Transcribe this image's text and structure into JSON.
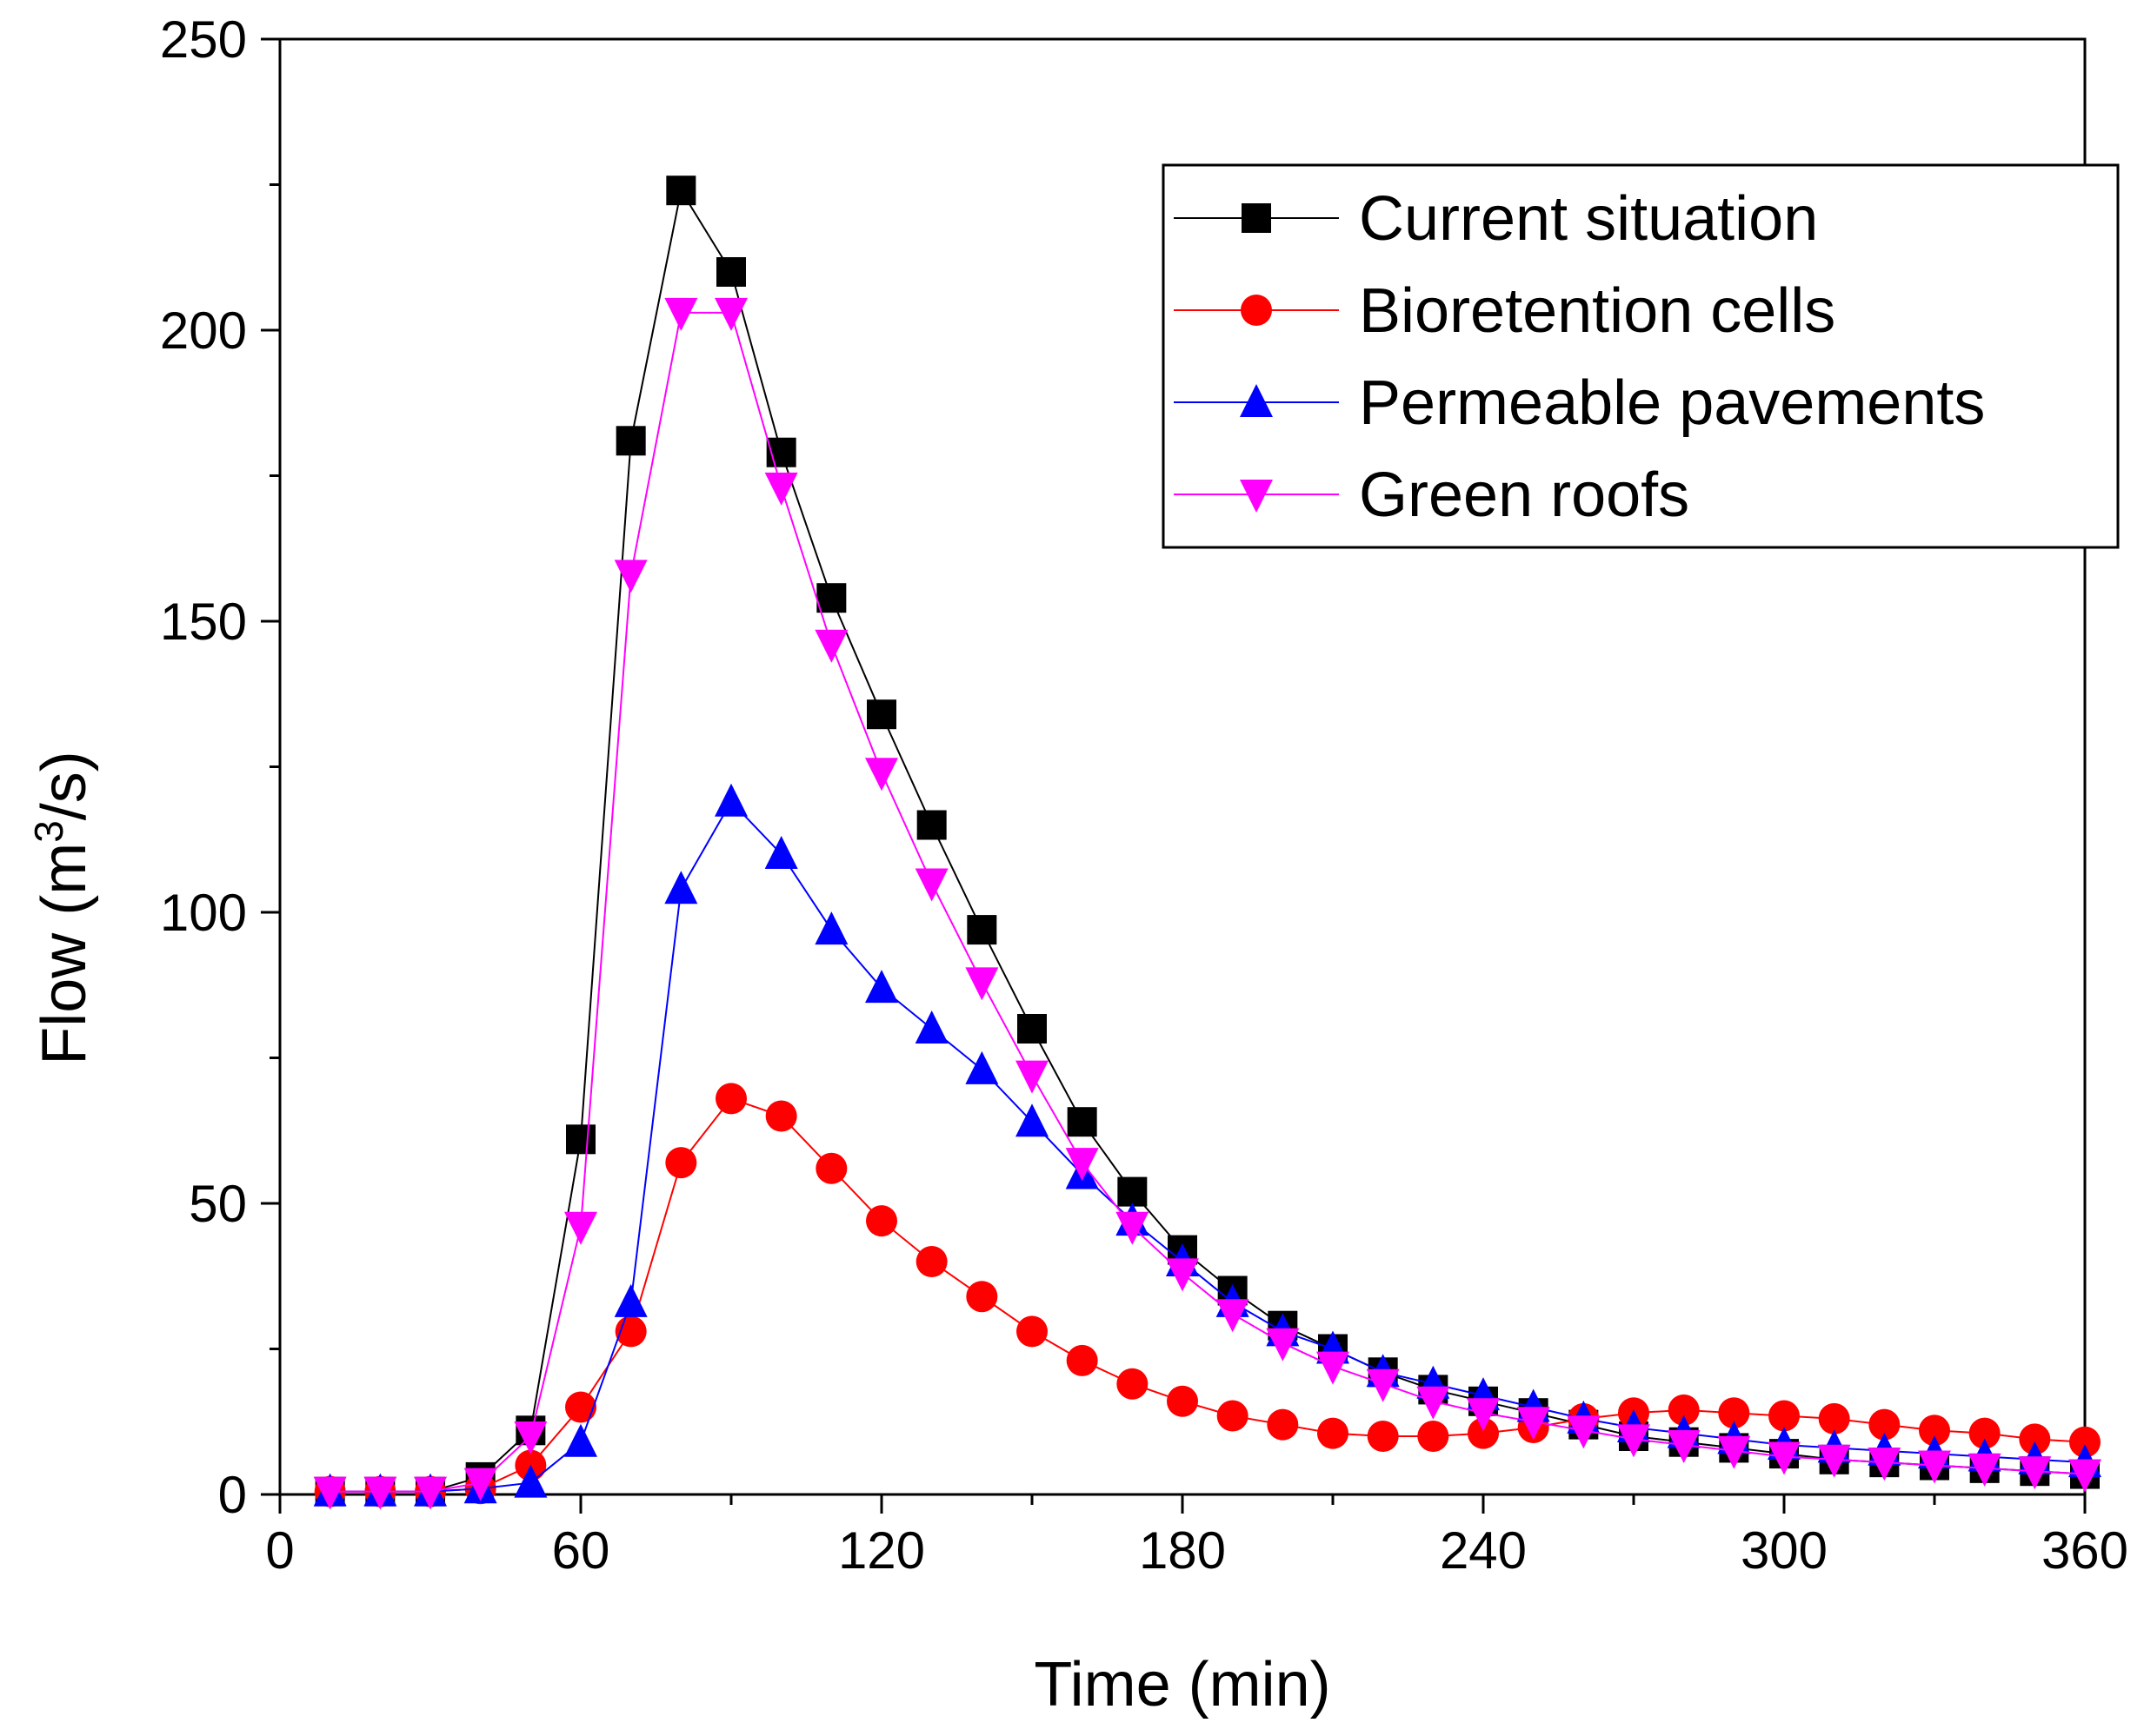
{
  "chart_data": {
    "type": "line",
    "title": "",
    "xlabel": "Time (min)",
    "ylabel_main": "Flow (m",
    "ylabel_sup": "3",
    "ylabel_tail": "/s)",
    "xlim": [
      0,
      360
    ],
    "ylim": [
      0,
      250
    ],
    "xticks": [
      0,
      60,
      120,
      180,
      240,
      300,
      360
    ],
    "yticks": [
      0,
      50,
      100,
      150,
      200,
      250
    ],
    "grid": false,
    "legend_position": "top-right",
    "x": [
      10,
      20,
      30,
      40,
      50,
      60,
      70,
      80,
      90,
      100,
      110,
      120,
      130,
      140,
      150,
      160,
      170,
      180,
      190,
      200,
      210,
      220,
      230,
      240,
      250,
      260,
      270,
      280,
      290,
      300,
      310,
      320,
      330,
      340,
      350,
      360
    ],
    "series": [
      {
        "name": "Current situation",
        "color": "#000000",
        "marker": "square",
        "values": [
          0.5,
          0.5,
          0.5,
          3,
          11,
          61,
          181,
          224,
          210,
          179,
          154,
          134,
          115,
          97,
          80,
          64,
          52,
          42,
          35,
          29,
          25,
          21,
          18,
          16,
          14,
          12,
          10,
          9,
          8,
          7,
          6,
          5.5,
          5,
          4.5,
          4,
          3.5
        ]
      },
      {
        "name": "Bioretention cells",
        "color": "#ff0000",
        "marker": "circle",
        "values": [
          0.5,
          0.5,
          0.5,
          1,
          5,
          15,
          28,
          57,
          68,
          65,
          56,
          47,
          40,
          34,
          28,
          23,
          19,
          16,
          13.5,
          12,
          10.5,
          10,
          10,
          10.5,
          11.5,
          13,
          14,
          14.5,
          14,
          13.5,
          13,
          12,
          11,
          10.5,
          9.5,
          9
        ]
      },
      {
        "name": "Permeable pavements",
        "color": "#0000ff",
        "marker": "triangle-up",
        "values": [
          0.5,
          0.5,
          0.5,
          1,
          2,
          9,
          33,
          104,
          119,
          110,
          97,
          87,
          80,
          73,
          64,
          55,
          47,
          40,
          33,
          28,
          25,
          21,
          19,
          17,
          15,
          13,
          11.5,
          10.5,
          9.5,
          8.5,
          8,
          7.5,
          7,
          6.5,
          6,
          5.5
        ]
      },
      {
        "name": "Green roofs",
        "color": "#ff00ff",
        "marker": "triangle-down",
        "values": [
          0.5,
          0.5,
          0.5,
          2,
          10,
          46,
          158,
          203,
          203,
          173,
          146,
          124,
          105,
          88,
          72,
          57,
          46,
          38,
          31,
          26,
          22,
          19,
          16,
          14,
          12.5,
          11,
          9.5,
          8.5,
          7.5,
          6.5,
          6,
          5.5,
          5,
          4.5,
          4,
          3.5
        ]
      }
    ]
  }
}
